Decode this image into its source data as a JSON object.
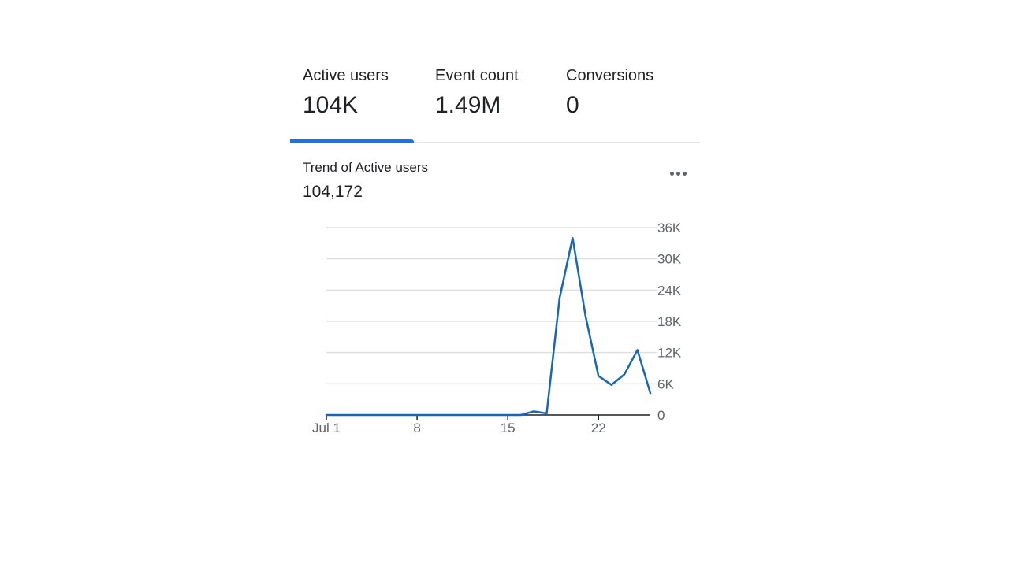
{
  "tabs": [
    {
      "label": "Active users",
      "value": "104K"
    },
    {
      "label": "Event count",
      "value": "1.49M"
    },
    {
      "label": "Conversions",
      "value": "0"
    }
  ],
  "trend": {
    "title": "Trend of Active users",
    "total": "104,172",
    "more_icon": "more-horizontal-icon"
  },
  "colors": {
    "accent": "#1a73e8",
    "line": "#1766b8",
    "grid": "#e0e0e0",
    "axis": "#202124"
  },
  "chart_data": {
    "type": "line",
    "title": "",
    "xlabel": "",
    "ylabel": "",
    "x_tick_labels": [
      "Jul 1",
      "8",
      "15",
      "22"
    ],
    "x_tick_days": [
      1,
      8,
      15,
      22
    ],
    "y_tick_labels": [
      "0",
      "6K",
      "12K",
      "18K",
      "24K",
      "30K",
      "36K"
    ],
    "y_ticks": [
      0,
      6000,
      12000,
      18000,
      24000,
      30000,
      36000
    ],
    "xlim": [
      1,
      26
    ],
    "ylim": [
      0,
      36000
    ],
    "grid": true,
    "legend": "none",
    "y_axis_position": "right",
    "series": [
      {
        "name": "",
        "x": [
          1,
          2,
          3,
          4,
          5,
          6,
          7,
          8,
          9,
          10,
          11,
          12,
          13,
          14,
          15,
          16,
          17,
          18,
          19,
          20,
          21,
          22,
          23,
          24,
          25,
          26
        ],
        "values": [
          0,
          0,
          0,
          0,
          0,
          0,
          0,
          0,
          0,
          0,
          0,
          0,
          0,
          0,
          0,
          0,
          700,
          300,
          22500,
          34000,
          19000,
          7500,
          5800,
          7800,
          12500,
          4200
        ]
      }
    ]
  }
}
